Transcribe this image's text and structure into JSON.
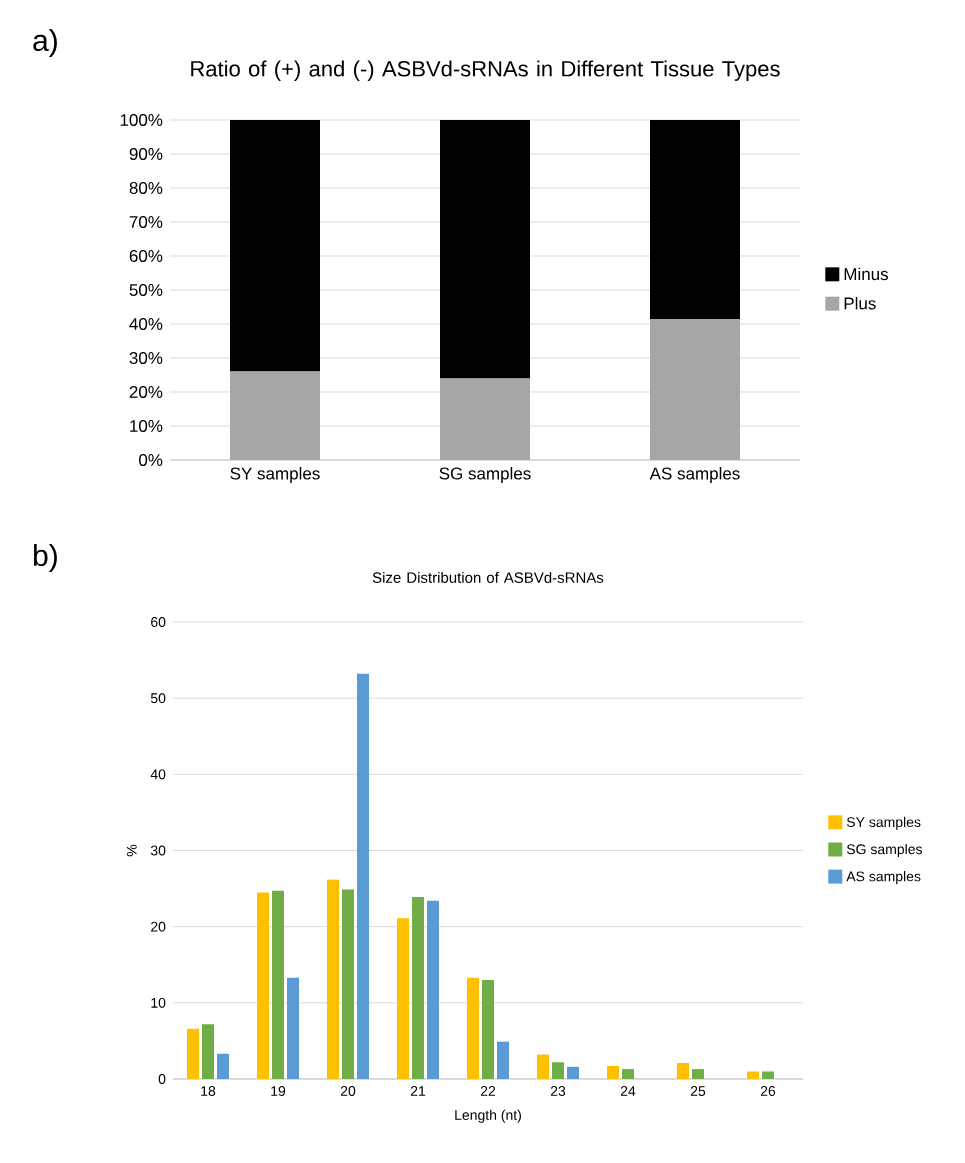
{
  "chart_data": [
    {
      "type": "bar",
      "title": "Ratio of (+) and (-) ASBVd-sRNAs in Different Tissue Types",
      "stacked": true,
      "categories": [
        "SY samples",
        "SG samples",
        "AS samples"
      ],
      "series": [
        {
          "name": "Plus",
          "color": "#a6a6a6",
          "values": [
            26,
            24,
            41.5
          ]
        },
        {
          "name": "Minus",
          "color": "#000000",
          "values": [
            74,
            76,
            58.5
          ]
        }
      ],
      "ylim": [
        0,
        100
      ],
      "yticks": [
        {
          "value": 0,
          "label": "0%"
        },
        {
          "value": 10,
          "label": "10%"
        },
        {
          "value": 20,
          "label": "20%"
        },
        {
          "value": 30,
          "label": "30%"
        },
        {
          "value": 40,
          "label": "40%"
        },
        {
          "value": 50,
          "label": "50%"
        },
        {
          "value": 60,
          "label": "60%"
        },
        {
          "value": 70,
          "label": "70%"
        },
        {
          "value": 80,
          "label": "80%"
        },
        {
          "value": 90,
          "label": "90%"
        },
        {
          "value": 100,
          "label": "100%"
        }
      ],
      "grid": "y",
      "legend": "right",
      "annotations": [
        "a)"
      ]
    },
    {
      "type": "bar",
      "title": "Size Distribution of ASBVd-sRNAs",
      "xlabel": "Length (nt)",
      "ylabel": "%",
      "categories": [
        "18",
        "19",
        "20",
        "21",
        "22",
        "23",
        "24",
        "25",
        "26"
      ],
      "series": [
        {
          "name": "SY samples",
          "color": "#ffc000",
          "values": [
            6.6,
            24.5,
            26.2,
            21.1,
            13.3,
            3.2,
            1.7,
            2.1,
            1.0
          ]
        },
        {
          "name": "SG samples",
          "color": "#70ad47",
          "values": [
            7.2,
            24.7,
            24.9,
            23.9,
            13.0,
            2.2,
            1.3,
            1.3,
            1.0
          ]
        },
        {
          "name": "AS samples",
          "color": "#5b9bd5",
          "values": [
            3.3,
            13.3,
            53.2,
            23.4,
            4.9,
            1.6,
            0,
            0,
            0
          ]
        }
      ],
      "ylim": [
        0,
        60
      ],
      "yticks": [
        0,
        10,
        20,
        30,
        40,
        50,
        60
      ],
      "grid": "y",
      "legend": "right",
      "annotations": [
        "b)"
      ]
    }
  ]
}
